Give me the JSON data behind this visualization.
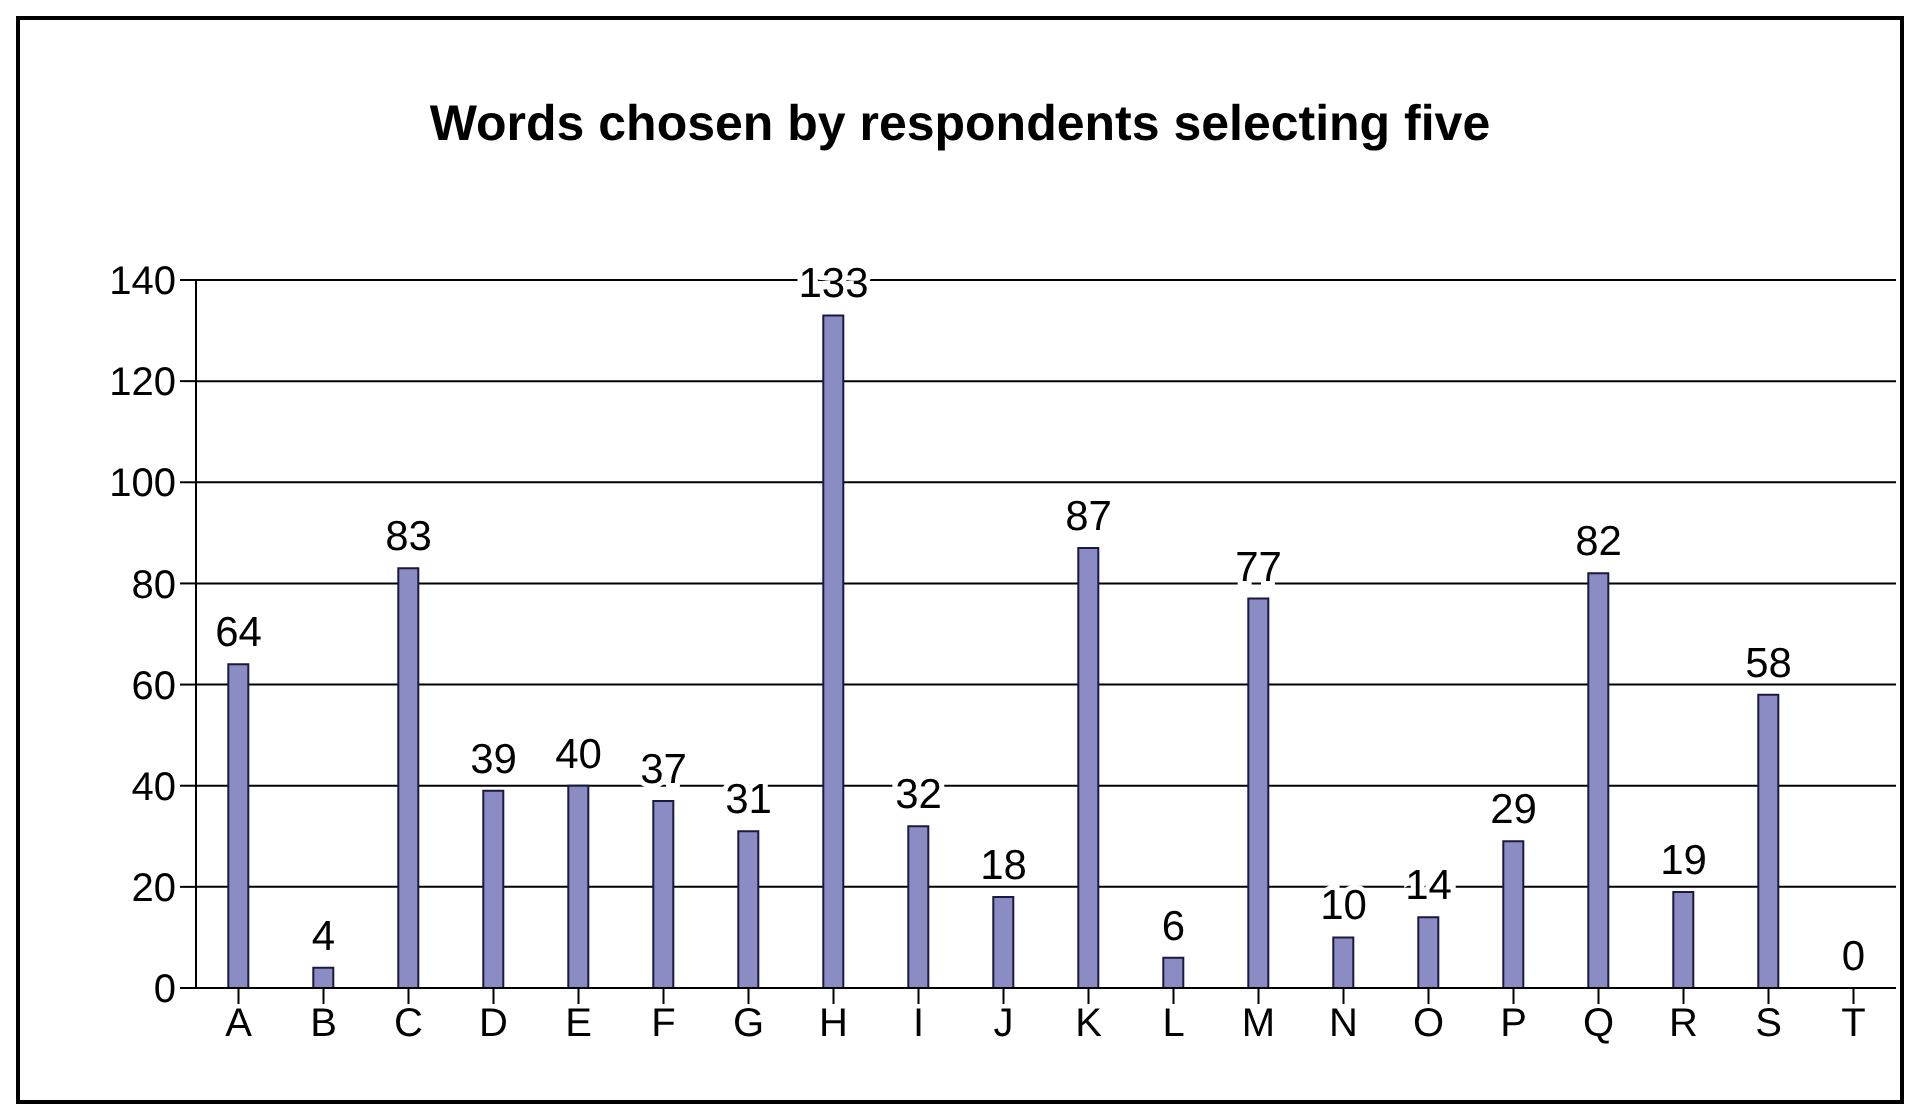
{
  "chart_data": {
    "type": "bar",
    "title": "Words chosen by respondents selecting five",
    "categories": [
      "A",
      "B",
      "C",
      "D",
      "E",
      "F",
      "G",
      "H",
      "I",
      "J",
      "K",
      "L",
      "M",
      "N",
      "O",
      "P",
      "Q",
      "R",
      "S",
      "T"
    ],
    "values": [
      64,
      4,
      83,
      39,
      40,
      37,
      31,
      133,
      32,
      18,
      87,
      6,
      77,
      10,
      14,
      29,
      82,
      19,
      58,
      0
    ],
    "color": "#8c8cc4",
    "ylim": [
      0,
      140
    ],
    "yticks": [
      0,
      20,
      40,
      60,
      80,
      100,
      120,
      140
    ],
    "grid": "y",
    "data_labels": true
  }
}
